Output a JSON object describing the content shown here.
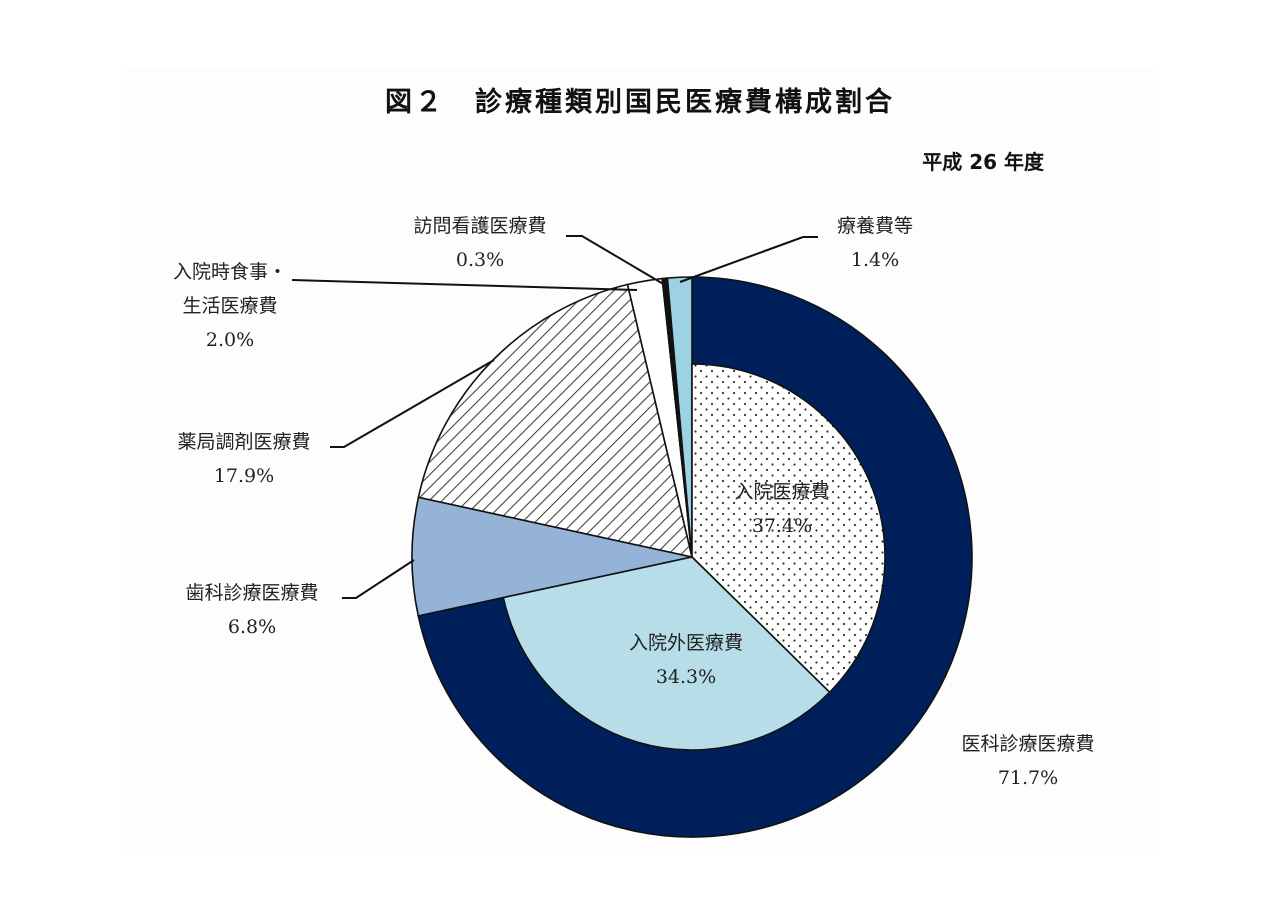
{
  "title": "図２　診療種類別国民医療費構成割合",
  "subtitle": "平成 26 年度",
  "chart_data": {
    "type": "pie",
    "title": "図２　診療種類別国民医療費構成割合",
    "subtitle": "平成 26 年度",
    "outer": [
      {
        "label": "医科診療医療費",
        "value": 71.7,
        "value_label": "71.7%",
        "color": "#00205b",
        "pattern": "solid"
      },
      {
        "label": "歯科診療医療費",
        "value": 6.8,
        "value_label": "6.8%",
        "color": "#95b3d7",
        "pattern": "solid"
      },
      {
        "label": "薬局調剤医療費",
        "value": 17.9,
        "value_label": "17.9%",
        "color": "#ffffff",
        "pattern": "hatch"
      },
      {
        "label": "入院時食事・生活医療費",
        "value": 2.0,
        "value_label": "2.0%",
        "color": "#ffffff",
        "pattern": "solid"
      },
      {
        "label": "訪問看護医療費",
        "value": 0.3,
        "value_label": "0.3%",
        "color": "#111111",
        "pattern": "solid"
      },
      {
        "label": "療養費等",
        "value": 1.4,
        "value_label": "1.4%",
        "color": "#9dd2e3",
        "pattern": "solid"
      }
    ],
    "inner": [
      {
        "label": "入院医療費",
        "value": 37.4,
        "value_label": "37.4%",
        "color": "#ffffff",
        "pattern": "dots"
      },
      {
        "label": "入院外医療費",
        "value": 34.3,
        "value_label": "34.3%",
        "color": "#b6dde8",
        "pattern": "solid"
      }
    ]
  }
}
